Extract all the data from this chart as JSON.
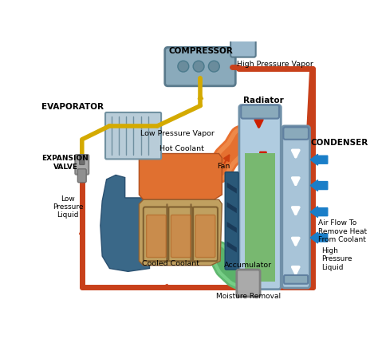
{
  "bg_color": "#ffffff",
  "pipe_red": "#c8401a",
  "pipe_yellow": "#d4aa00",
  "radiator_fill": "#b0cce0",
  "radiator_green": "#78b870",
  "condenser_fill": "#a8c4d8",
  "evap_fill": "#b8ccd8",
  "comp_fill": "#8aaabb",
  "comp_fill2": "#9ab8cc",
  "engine_orange": "#e07030",
  "engine_tan": "#c0a060",
  "engine_blue": "#3a6888",
  "fan_blue": "#2a5878",
  "valve_gray": "#aaaaaa",
  "acc_gray": "#aaaaaa",
  "arrow_red": "#cc2000",
  "arrow_white": "#ffffff",
  "arrow_olive": "#909040",
  "arrow_blue": "#1a7ec8",
  "hose_orange": "#d86020",
  "hose_green": "#50a060",
  "labels": {
    "compressor": "COMPRESSOR",
    "evaporator": "EVAPORATOR",
    "expansion_valve": "EXPANSION\nVALVE",
    "low_pressure_liquid": "Low\nPressure\nLiquid",
    "low_pressure_vapor": "Low Pressure Vapor",
    "hot_coolant": "Hot Coolant",
    "high_pressure_vapor": "High Pressure Vapor",
    "radiator": "Radiator",
    "fan": "Fan",
    "cooled_coolant": "Cooled Coolant",
    "condenser": "CONDENSER",
    "accumulator": "Accumulator",
    "moisture_removal": "Moisture Removal",
    "high_pressure_liquid": "High\nPressure\nLiquid",
    "air_flow": "Air Flow To\nRemove Heat\nFrom Coolant"
  }
}
